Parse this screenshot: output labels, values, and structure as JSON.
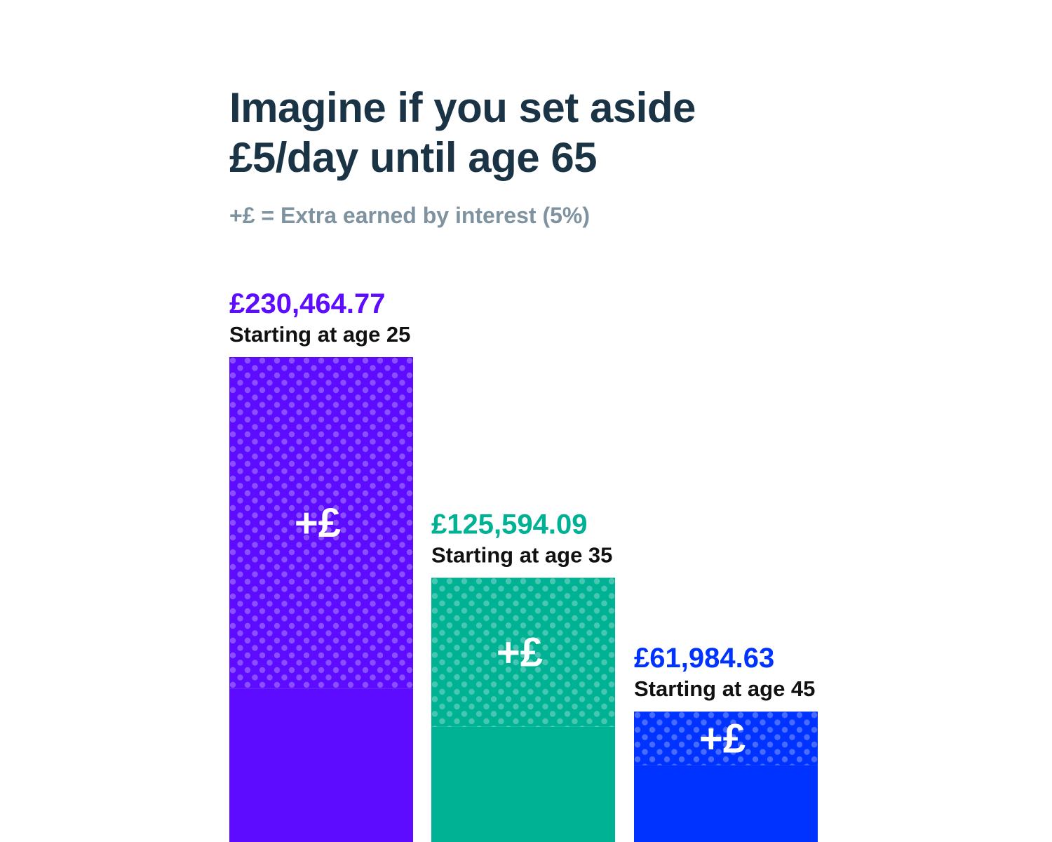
{
  "title_line1": "Imagine if you set aside",
  "title_line2": "£5/day until age 65",
  "subtitle": "+£ = Extra earned by interest (5%)",
  "colors": {
    "title": "#1a3446",
    "subtitle": "#7e929f",
    "caption": "#111111",
    "age25": "#5d0cff",
    "age35": "#00b294",
    "age45": "#0033ff"
  },
  "chart_data": {
    "type": "bar",
    "stacked": true,
    "title": "Imagine if you set aside £5/day until age 65",
    "subtitle": "+£ = Extra earned by interest (5%)",
    "categories": [
      "Starting at age 25",
      "Starting at age 35",
      "Starting at age 45"
    ],
    "total_labels": [
      "£230,464.77",
      "£125,594.09",
      "£61,984.63"
    ],
    "totals": [
      230464.77,
      125594.09,
      61984.63
    ],
    "series": [
      {
        "values": [
          73000,
          54750,
          36500
        ]
      },
      {
        "name": "+£",
        "values": [
          157464.77,
          70844.09,
          25484.63
        ]
      }
    ],
    "interest_marker": "+£",
    "bar_colors": [
      "#5d0cff",
      "#00b294",
      "#0033ff"
    ],
    "grid": false,
    "axes": false
  }
}
